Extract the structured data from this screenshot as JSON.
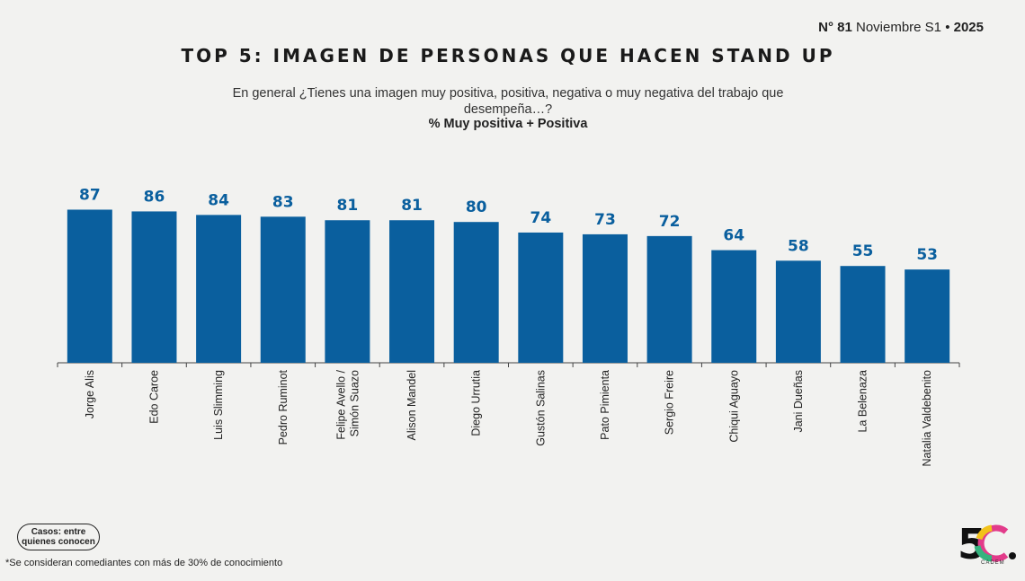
{
  "header": {
    "number_label": "N°",
    "number": "81",
    "period": "Noviembre S1 •",
    "year": "2025"
  },
  "title": "TOP 5: IMAGEN DE PERSONAS QUE HACEN STAND UP",
  "question": "En general ¿Tienes una imagen muy positiva, positiva, negativa o muy negativa del trabajo que desempeña…?",
  "metric_label": "% Muy positiva + Positiva",
  "chart_data": {
    "type": "bar",
    "categories": [
      "Jorge Alis",
      "Edo Caroe",
      "Luis Slimming",
      "Pedro Ruminot",
      "Felipe Avello / Simón Suazo",
      "Alison Mandel",
      "Diego Urrutia",
      "Gustón Salinas",
      "Pato Pimienta",
      "Sergio Freire",
      "Chiqui Aguayo",
      "Jani Dueñas",
      "La Belenaza",
      "Natalia Valdebenito"
    ],
    "values": [
      87,
      86,
      84,
      83,
      81,
      81,
      80,
      74,
      73,
      72,
      64,
      58,
      55,
      53
    ],
    "ylim": [
      0,
      100
    ],
    "bar_color": "#0a5f9e",
    "label_color": "#0a5f9e",
    "grid": false,
    "data_labels": true
  },
  "casos_label": "Casos: entre quienes conocen",
  "footnote": "*Se consideran comediantes con más de 30% de conocimiento",
  "logo": {
    "text": "5C",
    "subtext": "CADEM"
  }
}
